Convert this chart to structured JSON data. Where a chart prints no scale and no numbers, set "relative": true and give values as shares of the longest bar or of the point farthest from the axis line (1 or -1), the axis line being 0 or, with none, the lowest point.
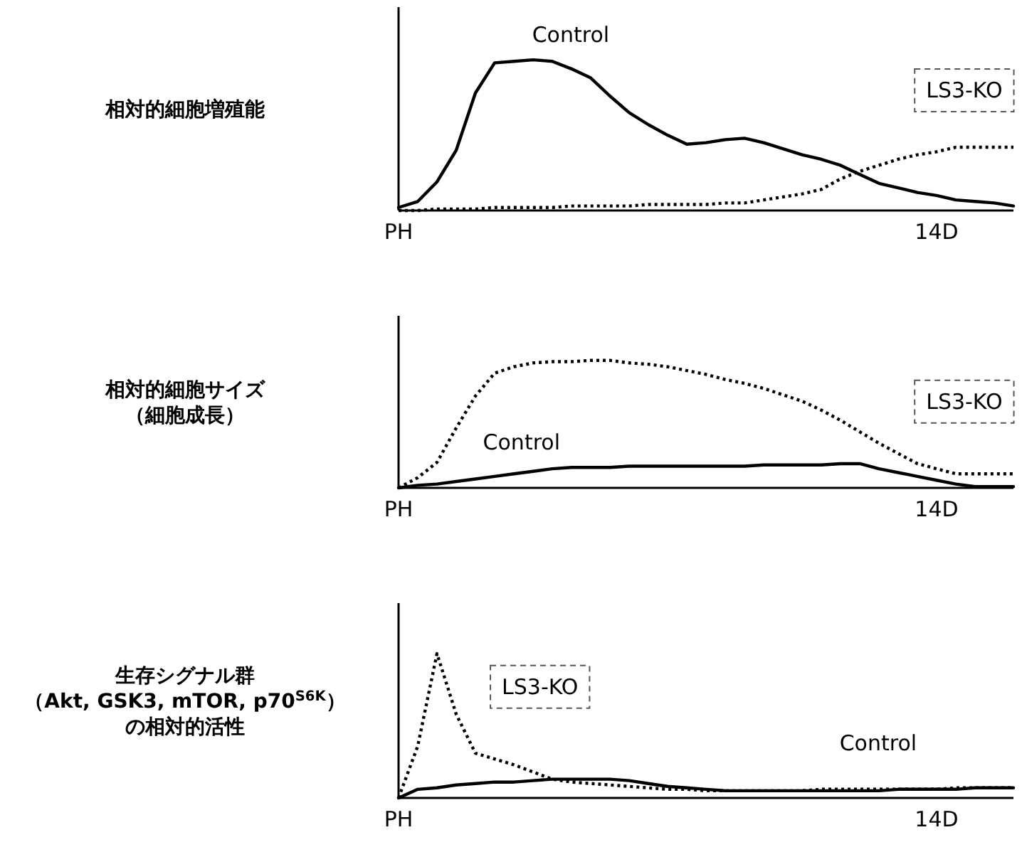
{
  "chart_data": [
    {
      "type": "line",
      "relative": true,
      "ylabel": "相対的細胞増殖能",
      "categories": [
        "PH",
        null,
        null,
        null,
        null,
        null,
        null,
        null,
        null,
        null,
        null,
        null,
        null,
        null,
        null,
        null,
        null,
        null,
        null,
        null,
        null,
        null,
        null,
        null,
        null,
        null,
        null,
        null,
        "14D",
        null,
        null,
        null,
        null
      ],
      "grid": false,
      "legend": false,
      "marker": "none",
      "series": [
        {
          "name": "Control",
          "color": "#000000",
          "line_style": "solid",
          "values": [
            0.02,
            0.06,
            0.19,
            0.4,
            0.78,
            0.98,
            0.99,
            1,
            0.99,
            0.94,
            0.88,
            0.76,
            0.65,
            0.57,
            0.5,
            0.44,
            0.45,
            0.47,
            0.48,
            0.45,
            0.41,
            0.37,
            0.34,
            0.3,
            0.24,
            0.18,
            0.15,
            0.12,
            0.1,
            0.07,
            0.06,
            0.05,
            0.03
          ]
        },
        {
          "name": "LS3-KO",
          "color": "#000000",
          "line_style": "dotted",
          "values": [
            0,
            0,
            0.01,
            0.01,
            0.01,
            0.02,
            0.02,
            0.02,
            0.02,
            0.03,
            0.03,
            0.03,
            0.03,
            0.04,
            0.04,
            0.04,
            0.04,
            0.05,
            0.05,
            0.07,
            0.09,
            0.11,
            0.14,
            0.21,
            0.26,
            0.3,
            0.34,
            0.37,
            0.39,
            0.42,
            0.42,
            0.42,
            0.42
          ]
        }
      ]
    },
    {
      "type": "line",
      "relative": true,
      "ylabel": "相対的細胞サイズ（細胞成長）",
      "categories": [
        "PH",
        null,
        null,
        null,
        null,
        null,
        null,
        null,
        null,
        null,
        null,
        null,
        null,
        null,
        null,
        null,
        null,
        null,
        null,
        null,
        null,
        null,
        null,
        null,
        null,
        null,
        null,
        null,
        "14D",
        null,
        null,
        null,
        null
      ],
      "grid": false,
      "legend": false,
      "marker": "none",
      "series": [
        {
          "name": "Control",
          "color": "#000000",
          "line_style": "solid",
          "values": [
            0,
            0.02,
            0.03,
            0.05,
            0.07,
            0.09,
            0.11,
            0.13,
            0.15,
            0.16,
            0.16,
            0.16,
            0.17,
            0.17,
            0.17,
            0.17,
            0.17,
            0.17,
            0.17,
            0.18,
            0.18,
            0.18,
            0.18,
            0.19,
            0.19,
            0.15,
            0.12,
            0.09,
            0.06,
            0.03,
            0.01,
            0.01,
            0.01
          ]
        },
        {
          "name": "LS3-KO",
          "color": "#000000",
          "line_style": "dotted",
          "values": [
            0,
            0.08,
            0.2,
            0.47,
            0.72,
            0.9,
            0.95,
            0.98,
            0.99,
            0.99,
            1,
            1,
            0.98,
            0.97,
            0.95,
            0.92,
            0.89,
            0.85,
            0.82,
            0.78,
            0.73,
            0.68,
            0.61,
            0.53,
            0.44,
            0.35,
            0.27,
            0.19,
            0.15,
            0.11,
            0.11,
            0.11,
            0.11
          ]
        }
      ]
    },
    {
      "type": "line",
      "relative": true,
      "ylabel": "生存シグナル群（Akt, GSK3, mTOR, p70$^{S6K}$）の相対的活性",
      "categories": [
        "PH",
        null,
        null,
        null,
        null,
        null,
        null,
        null,
        null,
        null,
        null,
        null,
        null,
        null,
        null,
        null,
        null,
        null,
        null,
        null,
        null,
        null,
        null,
        null,
        null,
        null,
        null,
        null,
        "14D",
        null,
        null,
        null,
        null
      ],
      "grid": false,
      "legend": false,
      "marker": "none",
      "series": [
        {
          "name": "Control",
          "color": "#000000",
          "line_style": "solid",
          "values": [
            0,
            0.06,
            0.07,
            0.09,
            0.1,
            0.11,
            0.11,
            0.12,
            0.13,
            0.13,
            0.13,
            0.13,
            0.12,
            0.1,
            0.08,
            0.07,
            0.06,
            0.05,
            0.05,
            0.05,
            0.05,
            0.05,
            0.05,
            0.05,
            0.05,
            0.05,
            0.06,
            0.06,
            0.06,
            0.06,
            0.07,
            0.07,
            0.07
          ]
        },
        {
          "name": "LS3-KO",
          "color": "#000000",
          "line_style": "dotted",
          "values": [
            0,
            0.36,
            1,
            0.58,
            0.31,
            0.27,
            0.23,
            0.18,
            0.13,
            0.11,
            0.1,
            0.09,
            0.08,
            0.07,
            0.06,
            0.06,
            0.05,
            0.05,
            0.05,
            0.05,
            0.05,
            0.05,
            0.06,
            0.06,
            0.06,
            0.06,
            0.06,
            0.06,
            0.06,
            0.07,
            0.07,
            0.07,
            0.07
          ]
        }
      ]
    }
  ]
}
